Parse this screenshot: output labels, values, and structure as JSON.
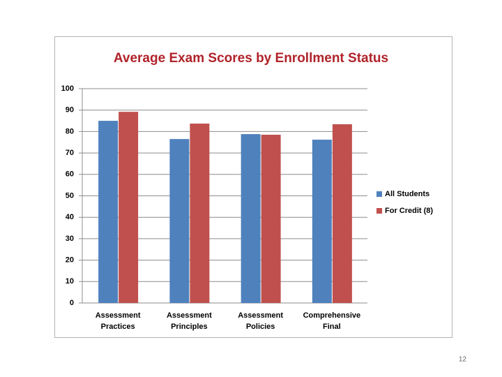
{
  "chart_data": {
    "type": "bar",
    "title": "Average Exam Scores by Enrollment Status",
    "categories": [
      "Assessment Practices",
      "Assessment Principles",
      "Assessment Policies",
      "Comprehensive Final"
    ],
    "series": [
      {
        "name": "All Students",
        "color": "#4f81bd",
        "values": [
          85,
          76.5,
          78.8,
          76.2
        ]
      },
      {
        "name": "For Credit (8)",
        "color": "#c0504d",
        "values": [
          89.2,
          83.7,
          78.5,
          83.4
        ]
      }
    ],
    "ylim": [
      0,
      100
    ],
    "yticks": [
      0,
      10,
      20,
      30,
      40,
      50,
      60,
      70,
      80,
      90,
      100
    ],
    "grid": true,
    "legend": "right"
  },
  "slide_number": "12"
}
